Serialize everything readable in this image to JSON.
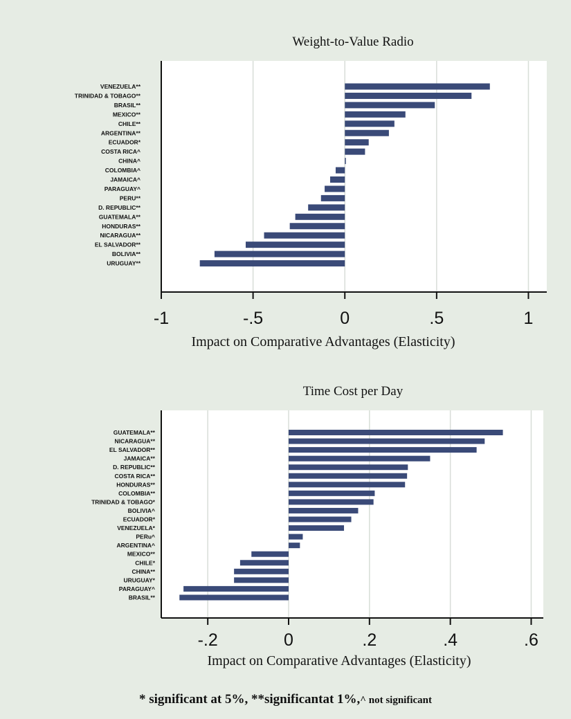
{
  "chart_data": [
    {
      "type": "bar",
      "orientation": "horizontal",
      "title": "Weight-to-Value Radio",
      "xlabel": "Impact on Comparative Advantages (Elasticity)",
      "ylabel": "",
      "xlim": [
        -1,
        1.1
      ],
      "xticks": [
        -1,
        -0.5,
        0,
        0.5,
        1
      ],
      "xtick_labels": [
        "-1",
        "-.5",
        "0",
        ".5",
        "1"
      ],
      "grid": true,
      "categories": [
        "VENEZUELA**",
        "TRINIDAD & TOBAGO**",
        "BRASIL**",
        "MEXICO**",
        "CHILE**",
        "ARGENTINA**",
        "ECUADOR*",
        "COSTA RICA^",
        "CHINA^",
        "COLOMBIA^",
        "JAMAICA^",
        "PARAGUAY^",
        "PERU**",
        "D. REPUBLIC**",
        "GUATEMALA**",
        "HONDURAS**",
        "NICARAGUA**",
        "EL SALVADOR**",
        "BOLIVIA**",
        "URUGUAY**"
      ],
      "values": [
        0.79,
        0.69,
        0.49,
        0.33,
        0.27,
        0.24,
        0.13,
        0.11,
        0.005,
        -0.05,
        -0.08,
        -0.11,
        -0.13,
        -0.2,
        -0.27,
        -0.3,
        -0.44,
        -0.54,
        -0.71,
        -0.79
      ],
      "bar_color": "#3a4a78"
    },
    {
      "type": "bar",
      "orientation": "horizontal",
      "title": "Time  Cost per Day",
      "xlabel": "Impact on Comparative Advantages (Elasticity)",
      "ylabel": "",
      "xlim": [
        -0.315,
        0.63
      ],
      "xticks": [
        -0.2,
        0,
        0.2,
        0.4,
        0.6
      ],
      "xtick_labels": [
        "-.2",
        "0",
        ".2",
        ".4",
        ".6"
      ],
      "grid": true,
      "categories": [
        "GUATEMALA**",
        "NICARAGUA**",
        "EL SALVADOR**",
        "JAMAICA**",
        "D. REPUBLIC**",
        "COSTA RICA**",
        "HONDURAS**",
        "COLOMBIA**",
        "TRINIDAD & TOBAGO*",
        "BOLIVIA^",
        "ECUADOR*",
        "VENEZUELA*",
        "PERu^",
        "ARGENTINA^",
        "MEXICO**",
        "CHILE*",
        "CHINA**",
        "URUGUAY*",
        "PARAGUAY^",
        "BRASIL**"
      ],
      "values": [
        0.53,
        0.485,
        0.465,
        0.35,
        0.295,
        0.293,
        0.288,
        0.213,
        0.21,
        0.172,
        0.155,
        0.137,
        0.035,
        0.028,
        -0.092,
        -0.12,
        -0.135,
        -0.135,
        -0.26,
        -0.27
      ],
      "bar_color": "#3a4a78"
    }
  ],
  "footnote": {
    "main": "* significant at 5%, **significantat 1%,",
    "small": "^ not significant"
  }
}
